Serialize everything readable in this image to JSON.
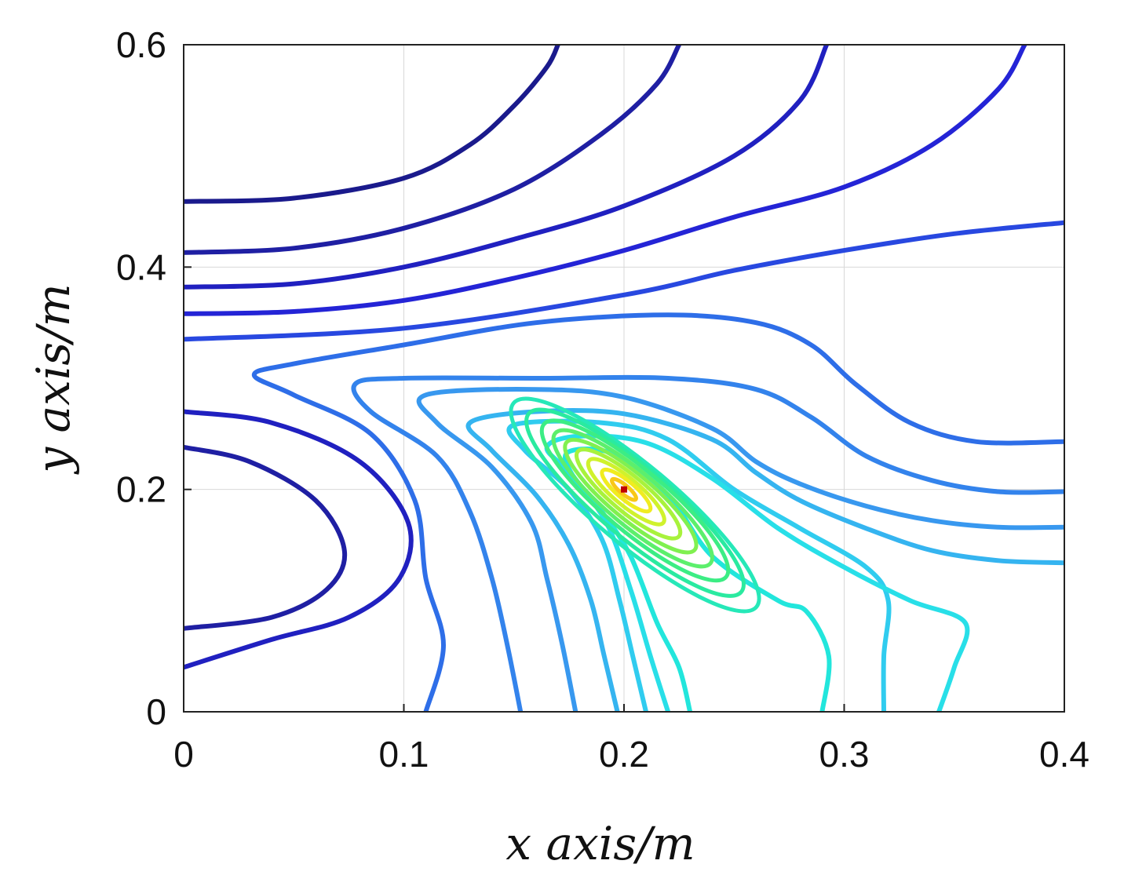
{
  "chart_data": {
    "type": "contour",
    "xlabel": "x axis/m",
    "ylabel": "y axis/m",
    "xlim": [
      0,
      0.4
    ],
    "ylim": [
      0,
      0.6
    ],
    "x_ticks": [
      "0",
      "0.1",
      "0.2",
      "0.3",
      "0.4"
    ],
    "y_ticks": [
      "0",
      "0.2",
      "0.4",
      "0.6"
    ],
    "grid": true,
    "colormap": "jet",
    "peak": {
      "x": 0.2,
      "y": 0.2,
      "color": "#c00000"
    },
    "contours": [
      {
        "level": 1,
        "color": "#1a1a8c",
        "points": [
          [
            0.0,
            0.459
          ],
          [
            0.05,
            0.462
          ],
          [
            0.1,
            0.48
          ],
          [
            0.13,
            0.51
          ],
          [
            0.15,
            0.545
          ],
          [
            0.165,
            0.58
          ],
          [
            0.17,
            0.6
          ]
        ]
      },
      {
        "level": 2,
        "color": "#1f1fa3",
        "points": [
          [
            0.0,
            0.413
          ],
          [
            0.05,
            0.417
          ],
          [
            0.1,
            0.435
          ],
          [
            0.15,
            0.47
          ],
          [
            0.19,
            0.52
          ],
          [
            0.215,
            0.565
          ],
          [
            0.225,
            0.6
          ]
        ]
      },
      {
        "level": 2,
        "color": "#1f1fa3",
        "points": [
          [
            0.0,
            0.238
          ],
          [
            0.03,
            0.225
          ],
          [
            0.06,
            0.19
          ],
          [
            0.073,
            0.145
          ],
          [
            0.065,
            0.11
          ],
          [
            0.04,
            0.085
          ],
          [
            0.0,
            0.075
          ]
        ]
      },
      {
        "level": 3,
        "color": "#2020c0",
        "points": [
          [
            0.0,
            0.382
          ],
          [
            0.05,
            0.385
          ],
          [
            0.1,
            0.4
          ],
          [
            0.15,
            0.425
          ],
          [
            0.2,
            0.455
          ],
          [
            0.25,
            0.5
          ],
          [
            0.28,
            0.55
          ],
          [
            0.292,
            0.6
          ]
        ]
      },
      {
        "level": 3,
        "color": "#2020c0",
        "points": [
          [
            0.0,
            0.27
          ],
          [
            0.04,
            0.26
          ],
          [
            0.08,
            0.225
          ],
          [
            0.102,
            0.17
          ],
          [
            0.098,
            0.12
          ],
          [
            0.075,
            0.085
          ],
          [
            0.04,
            0.065
          ],
          [
            0.0,
            0.04
          ]
        ]
      },
      {
        "level": 4,
        "color": "#2424d6",
        "points": [
          [
            0.0,
            0.358
          ],
          [
            0.05,
            0.36
          ],
          [
            0.1,
            0.37
          ],
          [
            0.15,
            0.39
          ],
          [
            0.2,
            0.415
          ],
          [
            0.25,
            0.445
          ],
          [
            0.3,
            0.472
          ],
          [
            0.34,
            0.51
          ],
          [
            0.37,
            0.56
          ],
          [
            0.382,
            0.6
          ]
        ]
      },
      {
        "level": 5,
        "color": "#2848e0",
        "points": [
          [
            0.0,
            0.335
          ],
          [
            0.1,
            0.345
          ],
          [
            0.2,
            0.375
          ],
          [
            0.25,
            0.397
          ],
          [
            0.3,
            0.415
          ],
          [
            0.35,
            0.43
          ],
          [
            0.4,
            0.44
          ]
        ]
      },
      {
        "level": 6,
        "color": "#2e6ee8",
        "points": [
          [
            0.4,
            0.243
          ],
          [
            0.36,
            0.243
          ],
          [
            0.33,
            0.26
          ],
          [
            0.305,
            0.295
          ],
          [
            0.285,
            0.33
          ],
          [
            0.26,
            0.35
          ],
          [
            0.22,
            0.357
          ],
          [
            0.16,
            0.35
          ],
          [
            0.1,
            0.33
          ],
          [
            0.05,
            0.313
          ],
          [
            0.032,
            0.303
          ],
          [
            0.05,
            0.285
          ],
          [
            0.085,
            0.25
          ],
          [
            0.105,
            0.19
          ],
          [
            0.11,
            0.12
          ],
          [
            0.118,
            0.06
          ],
          [
            0.11,
            0.0
          ]
        ]
      },
      {
        "level": 7,
        "color": "#3383ec",
        "points": [
          [
            0.4,
            0.198
          ],
          [
            0.37,
            0.198
          ],
          [
            0.34,
            0.208
          ],
          [
            0.31,
            0.23
          ],
          [
            0.285,
            0.265
          ],
          [
            0.26,
            0.29
          ],
          [
            0.22,
            0.3
          ],
          [
            0.16,
            0.3
          ],
          [
            0.1,
            0.3
          ],
          [
            0.078,
            0.295
          ],
          [
            0.085,
            0.27
          ],
          [
            0.115,
            0.23
          ],
          [
            0.13,
            0.18
          ],
          [
            0.14,
            0.12
          ],
          [
            0.147,
            0.06
          ],
          [
            0.153,
            0.0
          ]
        ]
      },
      {
        "level": 8,
        "color": "#3898ef",
        "points": [
          [
            0.4,
            0.166
          ],
          [
            0.37,
            0.166
          ],
          [
            0.34,
            0.172
          ],
          [
            0.31,
            0.185
          ],
          [
            0.28,
            0.205
          ],
          [
            0.26,
            0.225
          ],
          [
            0.24,
            0.255
          ],
          [
            0.2,
            0.283
          ],
          [
            0.16,
            0.29
          ],
          [
            0.11,
            0.285
          ],
          [
            0.115,
            0.26
          ],
          [
            0.14,
            0.22
          ],
          [
            0.158,
            0.17
          ],
          [
            0.165,
            0.12
          ],
          [
            0.172,
            0.06
          ],
          [
            0.178,
            0.0
          ]
        ]
      },
      {
        "level": 9,
        "color": "#35b4f0",
        "points": [
          [
            0.4,
            0.134
          ],
          [
            0.37,
            0.136
          ],
          [
            0.34,
            0.145
          ],
          [
            0.31,
            0.165
          ],
          [
            0.28,
            0.19
          ],
          [
            0.26,
            0.215
          ],
          [
            0.24,
            0.245
          ],
          [
            0.2,
            0.268
          ],
          [
            0.16,
            0.27
          ],
          [
            0.13,
            0.26
          ],
          [
            0.14,
            0.235
          ],
          [
            0.16,
            0.195
          ],
          [
            0.175,
            0.15
          ],
          [
            0.185,
            0.1
          ],
          [
            0.191,
            0.05
          ],
          [
            0.197,
            0.0
          ]
        ]
      },
      {
        "level": 10,
        "color": "#30ccef",
        "points": [
          [
            0.318,
            0.0
          ],
          [
            0.318,
            0.05
          ],
          [
            0.32,
            0.1
          ],
          [
            0.31,
            0.13
          ],
          [
            0.28,
            0.165
          ],
          [
            0.25,
            0.2
          ],
          [
            0.22,
            0.245
          ],
          [
            0.19,
            0.26
          ],
          [
            0.15,
            0.258
          ],
          [
            0.155,
            0.235
          ],
          [
            0.175,
            0.2
          ],
          [
            0.19,
            0.155
          ],
          [
            0.198,
            0.1
          ],
          [
            0.204,
            0.05
          ],
          [
            0.21,
            0.0
          ]
        ]
      },
      {
        "level": 11,
        "color": "#28dfe8",
        "points": [
          [
            0.343,
            0.0
          ],
          [
            0.35,
            0.04
          ],
          [
            0.355,
            0.08
          ],
          [
            0.33,
            0.1
          ],
          [
            0.3,
            0.13
          ],
          [
            0.27,
            0.165
          ],
          [
            0.24,
            0.21
          ],
          [
            0.21,
            0.242
          ],
          [
            0.18,
            0.248
          ],
          [
            0.165,
            0.238
          ],
          [
            0.175,
            0.215
          ],
          [
            0.192,
            0.17
          ],
          [
            0.203,
            0.11
          ],
          [
            0.212,
            0.05
          ],
          [
            0.22,
            0.0
          ]
        ]
      },
      {
        "level": 12,
        "color": "#22e6dc",
        "points": [
          [
            0.29,
            0.0
          ],
          [
            0.293,
            0.05
          ],
          [
            0.283,
            0.09
          ],
          [
            0.27,
            0.1
          ],
          [
            0.24,
            0.14
          ],
          [
            0.22,
            0.195
          ],
          [
            0.195,
            0.232
          ],
          [
            0.175,
            0.234
          ],
          [
            0.176,
            0.215
          ],
          [
            0.19,
            0.18
          ],
          [
            0.203,
            0.14
          ],
          [
            0.215,
            0.08
          ],
          [
            0.225,
            0.04
          ],
          [
            0.23,
            0.0
          ]
        ]
      }
    ],
    "ellipses": [
      {
        "level": 13,
        "color": "#26e8b8",
        "cx": 0.205,
        "cy": 0.186,
        "rx": 0.072,
        "ry": 0.018,
        "angle": -40
      },
      {
        "level": 14,
        "color": "#2aeaa0",
        "cx": 0.205,
        "cy": 0.188,
        "rx": 0.063,
        "ry": 0.016,
        "angle": -40
      },
      {
        "level": 15,
        "color": "#3ced84",
        "cx": 0.205,
        "cy": 0.19,
        "rx": 0.054,
        "ry": 0.014,
        "angle": -40
      },
      {
        "level": 16,
        "color": "#5cef6c",
        "cx": 0.204,
        "cy": 0.192,
        "rx": 0.046,
        "ry": 0.012,
        "angle": -40
      },
      {
        "level": 17,
        "color": "#80f050",
        "cx": 0.203,
        "cy": 0.194,
        "rx": 0.038,
        "ry": 0.01,
        "angle": -40
      },
      {
        "level": 18,
        "color": "#a8f23c",
        "cx": 0.202,
        "cy": 0.196,
        "rx": 0.03,
        "ry": 0.008,
        "angle": -40
      },
      {
        "level": 19,
        "color": "#d0f22c",
        "cx": 0.201,
        "cy": 0.198,
        "rx": 0.022,
        "ry": 0.006,
        "angle": -40
      },
      {
        "level": 20,
        "color": "#f0ec20",
        "cx": 0.201,
        "cy": 0.199,
        "rx": 0.014,
        "ry": 0.004,
        "angle": -40
      },
      {
        "level": 21,
        "color": "#f8c818",
        "cx": 0.2,
        "cy": 0.2,
        "rx": 0.007,
        "ry": 0.002,
        "angle": -40
      }
    ]
  }
}
